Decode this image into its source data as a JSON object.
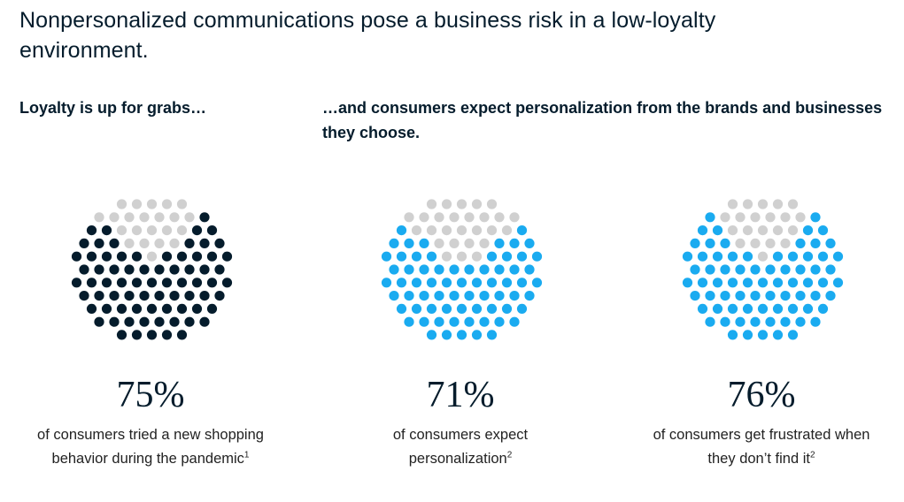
{
  "header": {
    "title": "Nonpersonalized communications pose a business risk in a low-loyalty environment.",
    "subtitle_left": "Loyalty is up for grabs…",
    "subtitle_right": "…and consumers expect personalization from the brands and businesses they choose."
  },
  "colors": {
    "inactive": "#d0d0d0",
    "dark": "#051c2c",
    "blue": "#1aabf0"
  },
  "chart_data": [
    {
      "type": "pie",
      "value": 75,
      "value_label": "75%",
      "description": "of consumers tried a new shopping behavior during the pandemic",
      "footnote": "1",
      "color": "#051c2c"
    },
    {
      "type": "pie",
      "value": 71,
      "value_label": "71%",
      "description": "of consumers expect personalization",
      "footnote": "2",
      "color": "#1aabf0"
    },
    {
      "type": "pie",
      "value": 76,
      "value_label": "76%",
      "description": "of consumers get frustrated when they don’t find it",
      "footnote": "2",
      "color": "#1aabf0"
    }
  ]
}
